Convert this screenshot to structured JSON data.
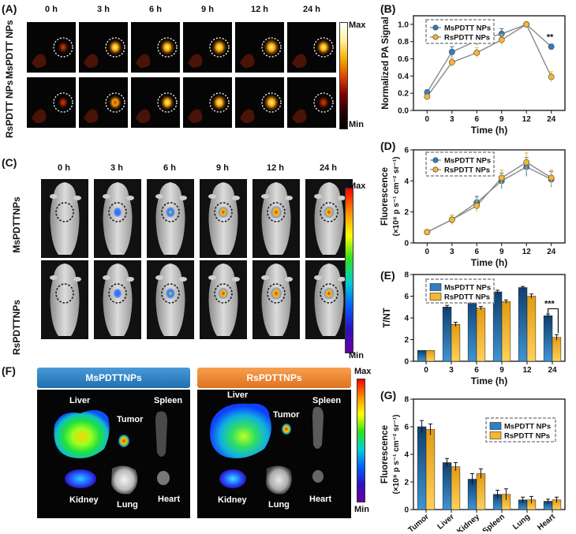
{
  "panels": {
    "A": "(A)",
    "B": "(B)",
    "C": "(C)",
    "D": "(D)",
    "E": "(E)",
    "F": "(F)",
    "G": "(G)"
  },
  "timepoints": [
    "0 h",
    "3 h",
    "6 h",
    "9 h",
    "12 h",
    "24 h"
  ],
  "pa_rows": [
    "MsPDTT NPs",
    "RsPDTT NPs"
  ],
  "fl_rows": [
    "MsPDTTNPs",
    "RsPDTTNPs"
  ],
  "colorbar": {
    "max": "Max",
    "min": "Min"
  },
  "panel_f": {
    "left_header": "MsPDTTNPs",
    "right_header": "RsPDTTNPs",
    "left_color": "#2e86c8",
    "right_color": "#f08a30",
    "organs_left": {
      "liver": "Liver",
      "tumor": "Tumor",
      "spleen": "Spleen",
      "kidney": "Kidney",
      "lung": "Lung",
      "heart": "Heart"
    },
    "organs_right": {
      "liver": "Liver",
      "tumor": "Tumor",
      "spleen": "Spleen",
      "kidney": "Kidney",
      "lung": "Lung",
      "heart": "Heart"
    }
  },
  "colors": {
    "ms": "#2f7fc1",
    "rs": "#f5b731",
    "gray": "#888888"
  },
  "chart_data": [
    {
      "id": "B",
      "type": "line",
      "x": [
        0,
        3,
        6,
        9,
        12,
        24
      ],
      "xticks": [
        "0",
        "3",
        "6",
        "9",
        "12",
        "24"
      ],
      "xlabel": "Time (h)",
      "ylabel": "Normalized PA Signal",
      "ylim": [
        0.0,
        1.1
      ],
      "yticks": [
        "0.0",
        "0.2",
        "0.4",
        "0.6",
        "0.8",
        "1.0"
      ],
      "legend": "top-left",
      "series": [
        {
          "name": "MsPDTT NPs",
          "values": [
            0.21,
            0.68,
            0.81,
            0.89,
            1.0,
            0.74
          ],
          "err": [
            0.03,
            0.06,
            0.05,
            0.06,
            0.01,
            0.03
          ]
        },
        {
          "name": "RsPDTT NPs",
          "values": [
            0.16,
            0.56,
            0.67,
            0.82,
            1.0,
            0.39
          ],
          "err": [
            0.03,
            0.05,
            0.06,
            0.06,
            0.01,
            0.06
          ]
        }
      ],
      "annotations": [
        "**"
      ]
    },
    {
      "id": "D",
      "type": "line",
      "x": [
        0,
        3,
        6,
        9,
        12,
        24
      ],
      "xticks": [
        "0",
        "3",
        "6",
        "9",
        "12",
        "24"
      ],
      "xlabel": "Time (h)",
      "ylabel": "Fluorescence",
      "ylabel2": "(×10⁸ p s⁻¹ cm⁻² sr⁻¹)",
      "ylim": [
        0,
        6
      ],
      "yticks": [
        "0",
        "2",
        "4",
        "6"
      ],
      "legend": "top-left",
      "series": [
        {
          "name": "MsPDTT NPs",
          "values": [
            0.7,
            1.5,
            2.6,
            4.0,
            4.9,
            4.1
          ],
          "err": [
            0.05,
            0.3,
            0.4,
            0.5,
            0.6,
            0.5
          ]
        },
        {
          "name": "RsPDTT NPs",
          "values": [
            0.7,
            1.5,
            2.4,
            4.2,
            5.2,
            4.2
          ],
          "err": [
            0.05,
            0.3,
            0.4,
            0.5,
            0.6,
            0.5
          ]
        }
      ]
    },
    {
      "id": "E",
      "type": "bar",
      "categories": [
        "0",
        "3",
        "6",
        "9",
        "12",
        "24"
      ],
      "xlabel": "Time (h)",
      "ylabel": "T/NT",
      "ylim": [
        0,
        8
      ],
      "yticks": [
        "0",
        "2",
        "4",
        "6",
        "8"
      ],
      "legend": "top-left",
      "series": [
        {
          "name": "MsPDTT NPs",
          "values": [
            1.0,
            5.0,
            5.9,
            6.4,
            6.8,
            4.2
          ],
          "err": [
            0.0,
            0.15,
            0.1,
            0.15,
            0.1,
            0.15
          ]
        },
        {
          "name": "RsPDTT NPs",
          "values": [
            1.0,
            3.4,
            4.9,
            5.5,
            6.0,
            2.2
          ],
          "err": [
            0.0,
            0.2,
            0.15,
            0.15,
            0.2,
            0.25
          ]
        }
      ],
      "annotations": [
        "***"
      ]
    },
    {
      "id": "G",
      "type": "bar",
      "categories": [
        "Tumor",
        "Liver",
        "Kidney",
        "Spleen",
        "Lung",
        "Heart"
      ],
      "xlabel": "",
      "ylabel": "Fluorescence",
      "ylabel2": "(×10⁸ p s⁻¹ cm⁻² sr⁻¹)",
      "ylim": [
        0,
        8
      ],
      "yticks": [
        "0",
        "2",
        "4",
        "6",
        "8"
      ],
      "legend": "top-right",
      "series": [
        {
          "name": "MsPDTT NPs",
          "values": [
            6.0,
            3.4,
            2.2,
            1.1,
            0.7,
            0.6
          ],
          "err": [
            0.45,
            0.3,
            0.4,
            0.3,
            0.2,
            0.15
          ]
        },
        {
          "name": "RsPDTT NPs",
          "values": [
            5.8,
            3.1,
            2.6,
            1.1,
            0.7,
            0.7
          ],
          "err": [
            0.4,
            0.3,
            0.35,
            0.4,
            0.25,
            0.2
          ]
        }
      ]
    }
  ]
}
